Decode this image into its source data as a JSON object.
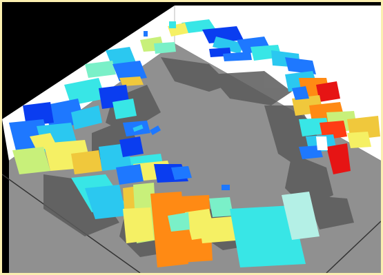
{
  "scene": {
    "subject": "3d-ring-of-colored-blocks",
    "colors": {
      "frame_border": "#fbefb0",
      "background": "#000000",
      "wall": "#ffffff",
      "floor": "#909090",
      "shadow": "#5f5f5f",
      "palette": [
        "#0a3df0",
        "#1e78ff",
        "#2bc8f0",
        "#38e6e6",
        "#7af0c8",
        "#c8f07a",
        "#f5f064",
        "#f0c83c",
        "#ff8a14",
        "#ff3c14",
        "#e61414",
        "#ffffff"
      ]
    }
  }
}
